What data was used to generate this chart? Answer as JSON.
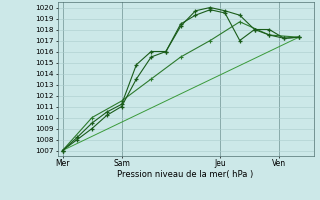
{
  "xlabel": "Pression niveau de la mer( hPa )",
  "background_color": "#cce8e8",
  "grid_color": "#aacccc",
  "ylim": [
    1006.5,
    1020.5
  ],
  "yticks": [
    1007,
    1008,
    1009,
    1010,
    1011,
    1012,
    1013,
    1014,
    1015,
    1016,
    1017,
    1018,
    1019,
    1020
  ],
  "xtick_labels": [
    "Mer",
    "Sam",
    "Jeu",
    "Ven"
  ],
  "xtick_positions": [
    0,
    12,
    32,
    44
  ],
  "xlim": [
    -1,
    51
  ],
  "series1_x": [
    0,
    3,
    6,
    9,
    12,
    15,
    18,
    21,
    24,
    27,
    30,
    33,
    36,
    39,
    42,
    45,
    48
  ],
  "series1_y": [
    1007.0,
    1008.0,
    1009.0,
    1010.2,
    1011.0,
    1013.5,
    1015.5,
    1016.0,
    1018.5,
    1019.3,
    1019.8,
    1019.5,
    1017.0,
    1018.0,
    1017.5,
    1017.2,
    1017.3
  ],
  "series2_x": [
    0,
    3,
    6,
    9,
    12,
    15,
    18,
    21,
    24,
    27,
    30,
    33,
    36,
    39,
    42,
    45,
    48
  ],
  "series2_y": [
    1007.0,
    1008.2,
    1009.5,
    1010.5,
    1011.2,
    1014.8,
    1016.0,
    1016.0,
    1018.3,
    1019.7,
    1020.0,
    1019.7,
    1019.3,
    1018.0,
    1018.0,
    1017.2,
    1017.3
  ],
  "series3_x": [
    0,
    6,
    12,
    18,
    24,
    30,
    36,
    42,
    48
  ],
  "series3_y": [
    1007.0,
    1010.0,
    1011.5,
    1013.5,
    1015.5,
    1017.0,
    1018.7,
    1017.5,
    1017.3
  ],
  "series4_x": [
    0,
    48
  ],
  "series4_y": [
    1007.0,
    1017.3
  ],
  "dark_green": "#1a5c1a",
  "mid_green": "#2d7a2d",
  "light_green": "#3a9a3a"
}
